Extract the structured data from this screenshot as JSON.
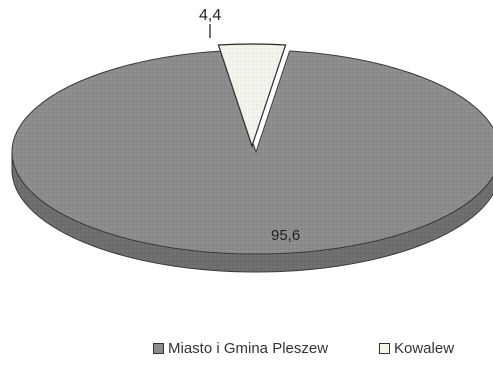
{
  "chart_data": {
    "type": "pie",
    "style": "3d-exploded",
    "categories": [
      "Miasto i Gmina Pleszew",
      "Kowalew"
    ],
    "values": [
      95.6,
      4.4
    ],
    "data_labels": [
      "95,6",
      "4,4"
    ],
    "colors": [
      "#8c8c8c",
      "#f4f4ec"
    ],
    "legend_placement": "bottom"
  },
  "legend": {
    "items": [
      {
        "label": "Miasto i Gmina Pleszew",
        "swatch": "#8c8c8c"
      },
      {
        "label": "Kowalew",
        "swatch": "#f4f4ec"
      }
    ]
  }
}
